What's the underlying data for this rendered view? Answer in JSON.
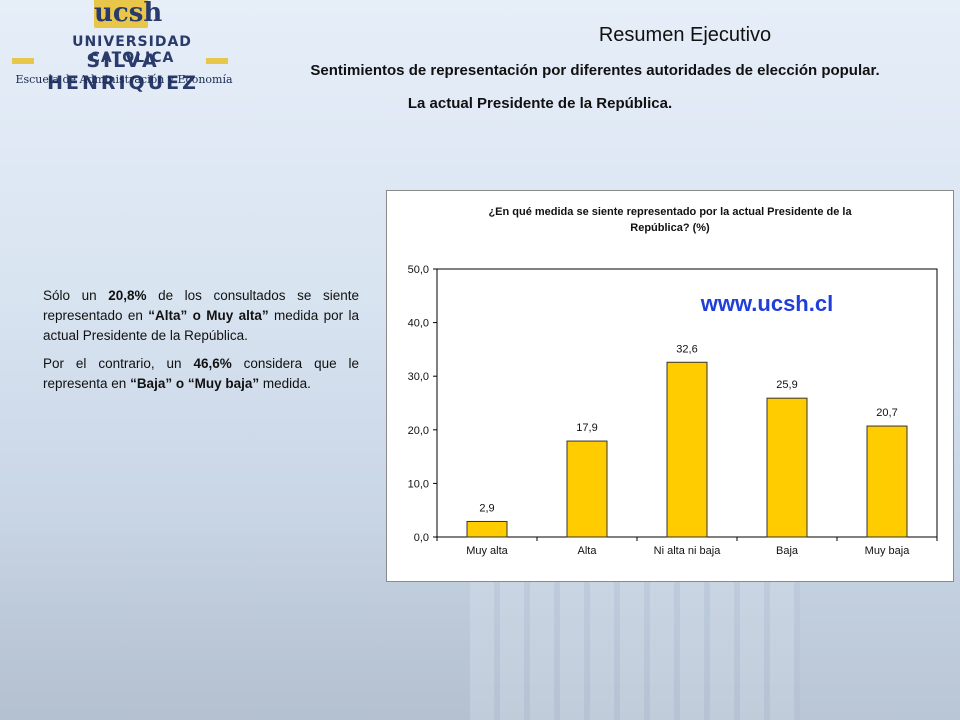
{
  "logo": {
    "brand": "ucsh",
    "university": "UNIVERSIDAD CATOLICA",
    "name": "SILVA HENRIQUEZ",
    "school": "Escuela de Administración y Economía"
  },
  "header": {
    "title": "Resumen Ejecutivo",
    "subtitle_line1": "Sentimientos de representación por diferentes autoridades de elección popular.",
    "subtitle_line2": "La actual Presidente de la República."
  },
  "summary": {
    "p1_a": "Sólo un ",
    "p1_value": "20,8%",
    "p1_b": " de los consultados se siente representado en ",
    "p1_levels": "“Alta” o Muy alta”",
    "p1_c": " medida por la actual Presidente de la República.",
    "p2_a": "Por el contrario, un ",
    "p2_value": "46,6%",
    "p2_b": " considera que le representa en ",
    "p2_levels": "“Baja” o “Muy baja”",
    "p2_c": " medida."
  },
  "colors": {
    "bar_fill": "#ffcc00",
    "bar_stroke": "#333333",
    "watermark": "#1f3fd8"
  },
  "chart_data": {
    "type": "bar",
    "title_line1": "¿En qué medida se siente representado por la actual Presidente de la",
    "title_line2": "República? (%)",
    "watermark": "www.ucsh.cl",
    "categories": [
      "Muy alta",
      "Alta",
      "Ni alta ni baja",
      "Baja",
      "Muy baja"
    ],
    "values": [
      2.9,
      17.9,
      32.6,
      25.9,
      20.7
    ],
    "value_labels": [
      "2,9",
      "17,9",
      "32,6",
      "25,9",
      "20,7"
    ],
    "y_ticks": [
      "0,0",
      "10,0",
      "20,0",
      "30,0",
      "40,0",
      "50,0"
    ],
    "ylim": [
      0,
      50
    ],
    "grid": false,
    "legend": "none"
  }
}
